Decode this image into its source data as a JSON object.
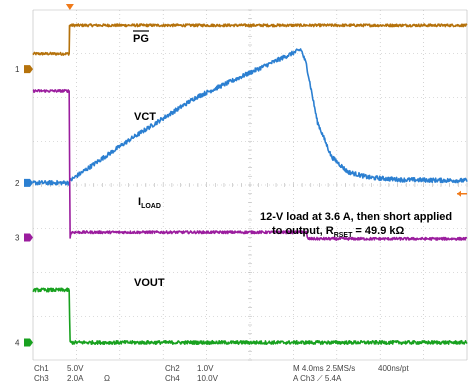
{
  "chart_data": {
    "type": "line",
    "title": "",
    "xlabel": "",
    "ylabel": "",
    "grid": true,
    "time_axis": {
      "divisions": 10,
      "time_per_div_ms": 4.0,
      "trigger_time_ms": 3.4
    },
    "series": [
      {
        "name": "PG",
        "channel": "1",
        "color": "#b5720c",
        "units": "V",
        "scale_per_div": "5.0V",
        "zero_div": 6.65,
        "noise_div": 0.03,
        "points": [
          [
            0,
            0.35
          ],
          [
            3.35,
            0.35
          ],
          [
            3.35,
            1.0
          ],
          [
            40,
            1.0
          ]
        ]
      },
      {
        "name": "VCT",
        "channel": "2",
        "color": "#2b7fd1",
        "units": "V",
        "scale_per_div": "1.0V",
        "zero_div": 4.05,
        "noise_div": 0.05,
        "points": [
          [
            0,
            0
          ],
          [
            3.35,
            0
          ],
          [
            3.4,
            0.05
          ],
          [
            9,
            1.0
          ],
          [
            15,
            1.95
          ],
          [
            24.7,
            3.05
          ],
          [
            25.2,
            2.7
          ],
          [
            26.2,
            1.4
          ],
          [
            27.5,
            0.6
          ],
          [
            29,
            0.25
          ],
          [
            31,
            0.12
          ],
          [
            34,
            0.07
          ],
          [
            40,
            0.05
          ]
        ]
      },
      {
        "name": "ILOAD",
        "channel": "3",
        "color": "#9b1d9e",
        "units": "A",
        "scale_per_div": "2.0A",
        "zero_div": 2.8,
        "noise_div": 0.03,
        "points": [
          [
            0,
            3.35
          ],
          [
            3.35,
            3.35
          ],
          [
            3.4,
            0.0
          ],
          [
            3.55,
            0.12
          ],
          [
            3.9,
            0.12
          ],
          [
            25.2,
            0.12
          ],
          [
            25.3,
            -0.03
          ],
          [
            40,
            -0.03
          ]
        ]
      },
      {
        "name": "VOUT",
        "channel": "4",
        "color": "#18a11f",
        "units": "V",
        "scale_per_div": "10.0V",
        "zero_div": 0.4,
        "noise_div": 0.04,
        "points": [
          [
            0,
            1.2
          ],
          [
            3.35,
            1.2
          ],
          [
            3.4,
            0
          ],
          [
            40,
            0
          ]
        ]
      }
    ]
  },
  "labels": {
    "pg": "PG",
    "vct": "VCT",
    "iload_main": "I",
    "iload_sub": "LOAD",
    "vout": "VOUT",
    "annotation_line1": "12-V load at 3.6 A, then short applied",
    "annotation_line2_pre": "to output, R",
    "annotation_line2_sub": "RSET",
    "annotation_line2_post": " = 49.9 kΩ"
  },
  "channel_markers": {
    "ch1": "1",
    "ch2": "2",
    "ch3": "3",
    "ch4": "4"
  },
  "footer": {
    "ch1": "Ch1",
    "ch1_scale": "5.0V",
    "ch2": "Ch2",
    "ch2_scale": "1.0V",
    "ch3": "Ch3",
    "ch3_scale": "2.0A",
    "ch3_unit": "Ω",
    "ch4": "Ch4",
    "ch4_scale": "10.0V",
    "timebase": "M 4.0ms 2.5MS/s",
    "record": "400ns/pt",
    "trigger": "A Ch3 ⟋ 5.4A"
  },
  "colors": {
    "ch1": "#b5720c",
    "ch2": "#2b7fd1",
    "ch3": "#9b1d9e",
    "ch4": "#18a11f",
    "grid": "#b8b8b8",
    "trigger": "#f07a1a",
    "background": "#ffffff"
  }
}
